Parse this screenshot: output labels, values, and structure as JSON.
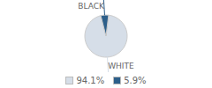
{
  "chart_data": {
    "type": "pie",
    "categories": [
      "WHITE",
      "BLACK"
    ],
    "values": [
      94.1,
      5.9
    ],
    "value_labels": [
      "94.1%",
      "5.9%"
    ],
    "colors": [
      "#d6dee8",
      "#2d5f8a"
    ],
    "legend": "bottom"
  }
}
